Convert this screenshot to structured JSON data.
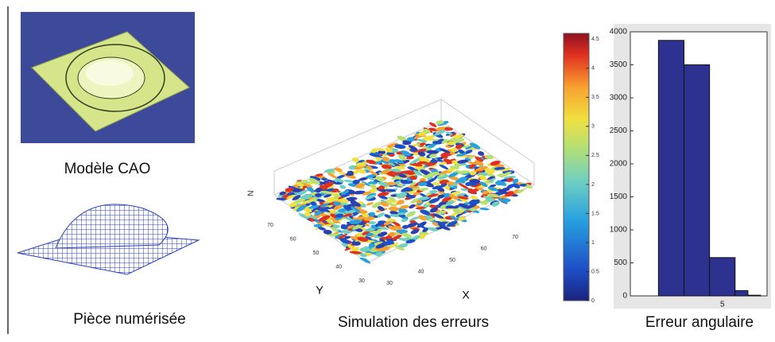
{
  "captions": [
    "Modèle CAO",
    "Pièce numérisée",
    "Simulation des erreurs",
    "Erreur angulaire"
  ],
  "surface_plot": {
    "zlabel": "N",
    "xlabel": "X",
    "ylabel": "Y",
    "xticks": [
      30,
      40,
      50,
      60,
      70
    ],
    "yticks": [
      30,
      40,
      50,
      60,
      70
    ]
  },
  "colorbar": {
    "lim": [
      0,
      4.6
    ],
    "ticks": [
      0,
      0.5,
      1,
      1.5,
      2,
      2.5,
      3,
      3.5,
      4,
      4.5
    ]
  },
  "chart_data": {
    "type": "histogram",
    "bins": [
      0,
      2,
      4,
      6,
      7,
      8
    ],
    "values": [
      3870,
      3500,
      580,
      80,
      10
    ],
    "color": "#2d3190",
    "xlim": [
      -2.2,
      8.5
    ],
    "ylim": [
      0,
      4000
    ],
    "xticks": [
      5
    ],
    "yticks": [
      0,
      500,
      1000,
      1500,
      2000,
      2500,
      3000,
      3500,
      4000
    ]
  }
}
